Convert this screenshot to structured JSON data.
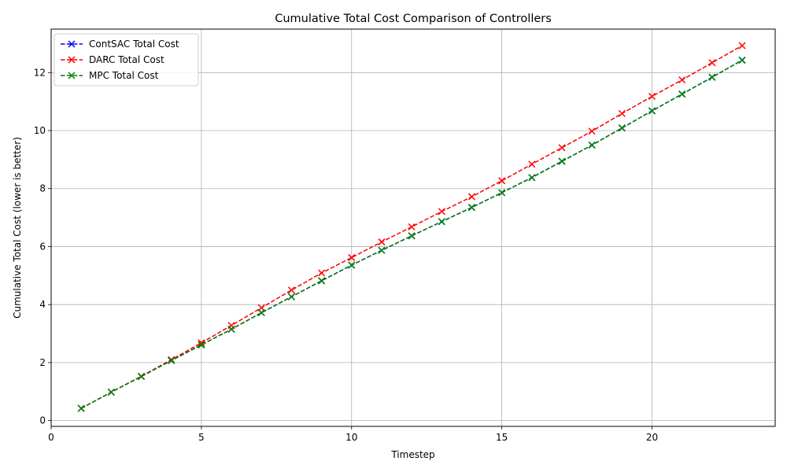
{
  "chart_data": {
    "type": "line",
    "title": "Cumulative Total Cost Comparison of Controllers",
    "xlabel": "Timestep",
    "ylabel": "Cumulative Total Cost (lower is better)",
    "xlim": [
      0,
      24.1
    ],
    "ylim": [
      -0.2,
      13.5
    ],
    "xticks": [
      0,
      5,
      10,
      15,
      20
    ],
    "yticks": [
      0,
      2,
      4,
      6,
      8,
      10,
      12
    ],
    "grid": true,
    "legend_position": "top-left",
    "x": [
      1,
      2,
      3,
      4,
      5,
      6,
      7,
      8,
      9,
      10,
      11,
      12,
      13,
      14,
      15,
      16,
      17,
      18,
      19,
      20,
      21,
      22,
      23
    ],
    "series": [
      {
        "name": "ContSAC Total Cost",
        "color": "#0000ff",
        "marker": "x",
        "linestyle": "dashed",
        "values": [
          0.42,
          0.98,
          1.52,
          2.07,
          2.61,
          3.15,
          3.72,
          4.27,
          4.82,
          5.36,
          5.87,
          6.37,
          6.86,
          7.35,
          7.86,
          8.38,
          8.94,
          9.5,
          10.09,
          10.68,
          11.26,
          11.84,
          12.43
        ]
      },
      {
        "name": "DARC Total Cost",
        "color": "#ff0000",
        "marker": "x",
        "linestyle": "dashed",
        "values": [
          0.42,
          0.98,
          1.53,
          2.1,
          2.68,
          3.28,
          3.89,
          4.5,
          5.09,
          5.62,
          6.16,
          6.68,
          7.21,
          7.72,
          8.27,
          8.84,
          9.41,
          9.98,
          10.59,
          11.18,
          11.75,
          12.34,
          12.93
        ]
      },
      {
        "name": "MPC Total Cost",
        "color": "#008000",
        "marker": "x",
        "linestyle": "dashed",
        "values": [
          0.42,
          0.98,
          1.52,
          2.07,
          2.61,
          3.15,
          3.72,
          4.27,
          4.82,
          5.36,
          5.87,
          6.37,
          6.86,
          7.35,
          7.86,
          8.38,
          8.94,
          9.5,
          10.09,
          10.68,
          11.26,
          11.84,
          12.43
        ]
      }
    ]
  }
}
